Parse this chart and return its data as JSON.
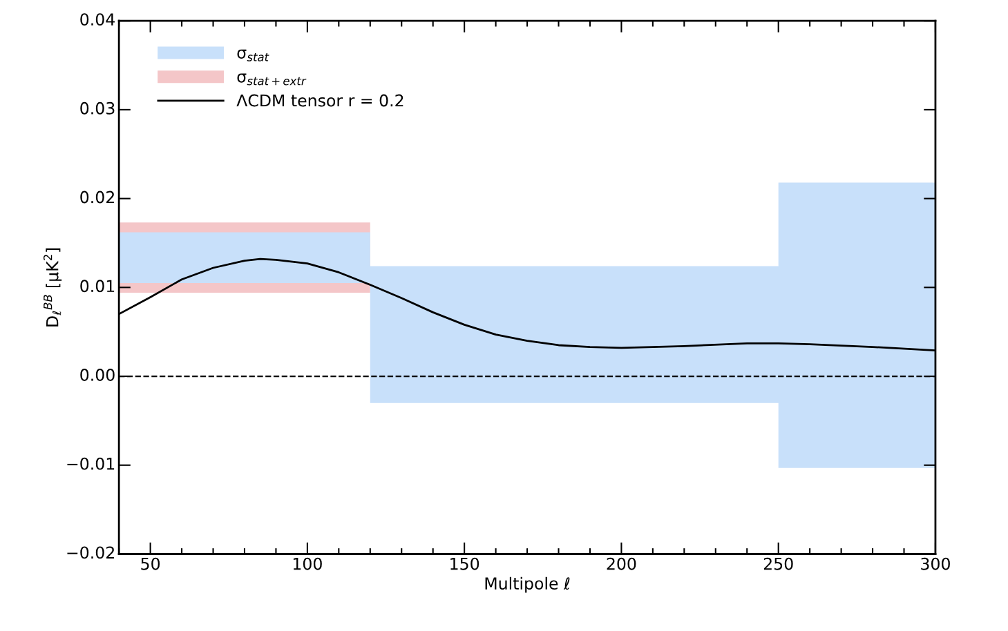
{
  "chart_data": {
    "type": "line",
    "xlabel": "Multipole ℓ",
    "ylabel": "D$_{ℓ}$$^{BB}$ [μK$^{2}$]",
    "xlim": [
      40,
      300
    ],
    "xticks": [
      50,
      100,
      150,
      200,
      250,
      300
    ],
    "ylim": [
      -0.02,
      0.04
    ],
    "yticks": [
      {
        "value": -0.02,
        "label": "−0.02"
      },
      {
        "value": -0.01,
        "label": "−0.01"
      },
      {
        "value": 0,
        "label": "0.00"
      },
      {
        "value": 0.01,
        "label": "0.01"
      },
      {
        "value": 0.02,
        "label": "0.02"
      },
      {
        "value": 0.03,
        "label": "0.03"
      },
      {
        "value": 0.04,
        "label": "0.04"
      }
    ],
    "series": [
      {
        "name": "σ$_{stat}$",
        "type": "line",
        "color": "#c8e0fa",
        "x": [
          40,
          120,
          120,
          250,
          250,
          300
        ],
        "lower": [
          0.0105,
          0.0105,
          -0.003,
          -0.003,
          -0.0103,
          -0.0103
        ],
        "upper": [
          0.0162,
          0.0162,
          0.0124,
          0.0124,
          0.0218,
          0.0218
        ],
        "values": [
          null,
          null,
          null,
          null,
          null,
          null
        ]
      },
      {
        "name": "σ$_{stat+extr}$",
        "type": "line",
        "color": "#f4c6c8",
        "x": [
          40,
          120
        ],
        "lower": [
          0.0094,
          0.0094
        ],
        "upper": [
          0.0173,
          0.0173
        ],
        "values": [
          null,
          null
        ]
      },
      {
        "name": "ΛCDM tensor r = 0.2",
        "color": "#000000",
        "x": [
          40,
          50,
          60,
          70,
          80,
          85,
          90,
          100,
          110,
          120,
          130,
          140,
          150,
          160,
          170,
          180,
          190,
          200,
          220,
          240,
          250,
          260,
          280,
          300
        ],
        "values": [
          0.007,
          0.0089,
          0.0109,
          0.0122,
          0.013,
          0.0132,
          0.0131,
          0.0127,
          0.0117,
          0.0103,
          0.0088,
          0.0072,
          0.0058,
          0.0047,
          0.004,
          0.0035,
          0.0033,
          0.0032,
          0.0034,
          0.0037,
          0.0037,
          0.0036,
          0.0033,
          0.0029
        ]
      }
    ],
    "ref_lines": [
      {
        "axis": "y",
        "value": 0,
        "color": "#000000",
        "line_style": "dashed"
      }
    ],
    "legend": "top left",
    "grid": false,
    "line_style": "solid",
    "marker": "none"
  }
}
